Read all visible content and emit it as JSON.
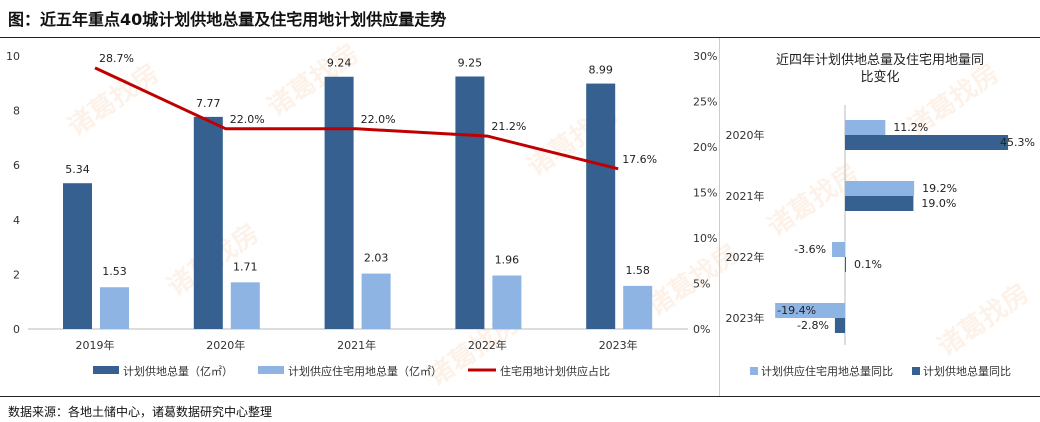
{
  "title": "图：近五年重点40城计划供地总量及住宅用地计划供应量走势",
  "source": "数据来源：各地土储中心，诸葛数据研究中心整理",
  "watermark": "诸葛找房",
  "colors": {
    "dark": "#35608f",
    "light": "#8eb4e3",
    "line": "#c00000"
  },
  "chart_data": [
    {
      "type": "bar+line",
      "categories": [
        "2019年",
        "2020年",
        "2021年",
        "2022年",
        "2023年"
      ],
      "series": [
        {
          "name": "计划供地总量（亿㎡）",
          "axis": "left",
          "type": "bar",
          "values": [
            5.34,
            7.77,
            9.24,
            9.25,
            8.99
          ],
          "labels": [
            "5.34",
            "7.77",
            "9.24",
            "9.25",
            "8.99"
          ]
        },
        {
          "name": "计划供应住宅用地总量（亿㎡）",
          "axis": "left",
          "type": "bar",
          "values": [
            1.53,
            1.71,
            2.03,
            1.96,
            1.58
          ],
          "labels": [
            "1.53",
            "1.71",
            "2.03",
            "1.96",
            "1.58"
          ]
        },
        {
          "name": "住宅用地计划供应占比",
          "axis": "right",
          "type": "line",
          "values": [
            28.7,
            22.0,
            22.0,
            21.2,
            17.6
          ],
          "labels": [
            "28.7%",
            "22.0%",
            "22.0%",
            "21.2%",
            "17.6%"
          ]
        }
      ],
      "ylim": [
        0,
        10
      ],
      "yticks": [
        "0",
        "2",
        "4",
        "6",
        "8",
        "10"
      ],
      "y2lim": [
        0,
        30
      ],
      "y2ticks": [
        "0%",
        "5%",
        "10%",
        "15%",
        "20%",
        "25%",
        "30%"
      ],
      "legend": "bottom",
      "grid": false
    },
    {
      "type": "horizontal-bar",
      "title": [
        "近四年计划供地总量及住宅用地量同",
        "比变化"
      ],
      "categories": [
        "2020年",
        "2021年",
        "2022年",
        "2023年"
      ],
      "series": [
        {
          "name": "计划供应住宅用地总量同比",
          "values": [
            11.2,
            19.2,
            -3.6,
            -19.4
          ],
          "labels": [
            "11.2%",
            "19.2%",
            "-3.6%",
            "-19.4%"
          ]
        },
        {
          "name": "计划供地总量同比",
          "values": [
            45.3,
            19.0,
            0.1,
            -2.8
          ],
          "labels": [
            "45.3%",
            "19.0%",
            "0.1%",
            "-2.8%"
          ]
        }
      ],
      "legend": "bottom",
      "grid": false
    }
  ]
}
